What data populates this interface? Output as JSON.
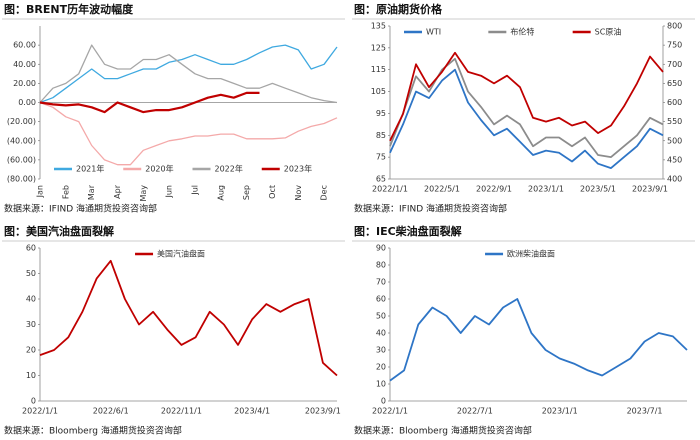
{
  "chart_data": [
    {
      "type": "line",
      "title": "图：BRENT历年波动幅度",
      "source": "数据来源：IFIND  海通期货投资咨询部",
      "legend": "bottom",
      "negative_tick_color": "#c00000",
      "categories": [
        "Jan",
        null,
        "Feb",
        null,
        "Mar",
        null,
        "Apr",
        null,
        "May",
        null,
        "Jun",
        null,
        "Jul",
        null,
        "Aug",
        null,
        "Sep",
        null,
        "Oct",
        null,
        "Nov",
        null,
        "Dec",
        null
      ],
      "ylim": [
        -80,
        80
      ],
      "yticks": [
        {
          "value": 60,
          "label": "60.00"
        },
        {
          "value": 40,
          "label": "40.00"
        },
        {
          "value": 20,
          "label": "20.00"
        },
        {
          "value": 0,
          "label": "0.00"
        },
        {
          "value": -20,
          "label": "(20.00)"
        },
        {
          "value": -40,
          "label": "(40.00)"
        },
        {
          "value": -60,
          "label": "(60.00)"
        },
        {
          "value": -80,
          "label": "(80.00)"
        }
      ],
      "series": [
        {
          "name": "2021年",
          "color": "#3fa9e0",
          "width": 1.3,
          "values": [
            0,
            5,
            15,
            25,
            35,
            25,
            25,
            30,
            35,
            35,
            42,
            45,
            50,
            45,
            40,
            40,
            45,
            52,
            58,
            60,
            55,
            35,
            40,
            58
          ]
        },
        {
          "name": "2020年",
          "color": "#f4a9a9",
          "width": 1.3,
          "values": [
            0,
            -5,
            -15,
            -20,
            -45,
            -60,
            -65,
            -65,
            -50,
            -45,
            -40,
            -38,
            -35,
            -35,
            -33,
            -33,
            -38,
            -38,
            -38,
            -37,
            -30,
            -25,
            -22,
            -16
          ]
        },
        {
          "name": "2022年",
          "color": "#a6a6a6",
          "width": 1.3,
          "values": [
            0,
            15,
            20,
            30,
            60,
            40,
            35,
            35,
            45,
            45,
            50,
            40,
            30,
            25,
            25,
            20,
            15,
            15,
            20,
            15,
            10,
            5,
            2,
            0
          ]
        },
        {
          "name": "2023年",
          "color": "#c00000",
          "width": 2.2,
          "values": [
            0,
            -2,
            -3,
            -2,
            -5,
            -10,
            0,
            -5,
            -10,
            -8,
            -8,
            -5,
            0,
            5,
            8,
            5,
            10,
            10,
            null,
            null,
            null,
            null,
            null,
            null
          ]
        }
      ]
    },
    {
      "type": "line",
      "title": "图：原油期货价格",
      "source": "数据来源：IFIND  海通期货投资咨询部",
      "legend": "top",
      "categories": [
        "2022/1/1",
        null,
        null,
        null,
        "2022/5/1",
        null,
        null,
        null,
        "2022/9/1",
        null,
        null,
        null,
        "2023/1/1",
        null,
        null,
        null,
        "2023/5/1",
        null,
        null,
        null,
        "2023/9/1",
        null
      ],
      "ylim": [
        65,
        135
      ],
      "yticks": [
        65,
        75,
        85,
        95,
        105,
        115,
        125,
        135
      ],
      "y2lim": [
        400,
        800
      ],
      "y2ticks": [
        400,
        450,
        500,
        550,
        600,
        650,
        700,
        750,
        800
      ],
      "series": [
        {
          "name": "WTI",
          "color": "#2e75c6",
          "width": 1.8,
          "values": [
            77,
            90,
            105,
            102,
            110,
            115,
            100,
            92,
            85,
            88,
            82,
            76,
            78,
            77,
            73,
            78,
            72,
            70,
            75,
            80,
            88,
            85
          ]
        },
        {
          "name": "布伦特",
          "color": "#8c8c8c",
          "width": 1.8,
          "values": [
            80,
            95,
            112,
            105,
            115,
            120,
            105,
            98,
            90,
            94,
            90,
            80,
            84,
            84,
            80,
            84,
            76,
            75,
            80,
            85,
            93,
            90
          ]
        },
        {
          "name": "SC原油",
          "color": "#c00000",
          "width": 1.8,
          "axis": "y2",
          "values": [
            500,
            570,
            700,
            640,
            680,
            730,
            680,
            670,
            650,
            670,
            640,
            560,
            550,
            560,
            540,
            550,
            520,
            540,
            590,
            650,
            720,
            680
          ]
        }
      ]
    },
    {
      "type": "line",
      "title": "图：美国汽油盘面裂解",
      "source": "数据来源：Bloomberg  海通期货投资咨询部",
      "legend": "top",
      "categories": [
        "2022/1/1",
        null,
        null,
        null,
        null,
        "2022/6/1",
        null,
        null,
        null,
        null,
        "2022/11/1",
        null,
        null,
        null,
        null,
        "2023/4/1",
        null,
        null,
        null,
        null,
        "2023/9/1",
        null
      ],
      "ylim": [
        0,
        60
      ],
      "yticks": [
        0,
        10,
        20,
        30,
        40,
        50,
        60
      ],
      "series": [
        {
          "name": "美国汽油盘面",
          "color": "#c00000",
          "width": 1.8,
          "values": [
            18,
            20,
            25,
            35,
            48,
            55,
            40,
            30,
            35,
            28,
            22,
            25,
            35,
            30,
            22,
            32,
            38,
            35,
            38,
            40,
            15,
            10
          ]
        }
      ]
    },
    {
      "type": "line",
      "title": "图：IEC柴油盘面裂解",
      "source": "数据来源：Bloomberg  海通期货投资咨询部",
      "legend": "top",
      "categories": [
        "2022/1/1",
        null,
        null,
        null,
        null,
        null,
        "2022/7/1",
        null,
        null,
        null,
        null,
        null,
        "2023/1/1",
        null,
        null,
        null,
        null,
        null,
        "2023/7/1",
        null,
        null,
        null
      ],
      "ylim": [
        0,
        90
      ],
      "yticks": [
        0,
        10,
        20,
        30,
        40,
        50,
        60,
        70,
        80,
        90
      ],
      "series": [
        {
          "name": "欧洲柴油盘面",
          "color": "#2e75c6",
          "width": 1.8,
          "values": [
            12,
            18,
            45,
            55,
            50,
            40,
            50,
            45,
            55,
            60,
            40,
            30,
            25,
            22,
            18,
            15,
            20,
            25,
            35,
            40,
            38,
            30
          ]
        }
      ]
    }
  ]
}
